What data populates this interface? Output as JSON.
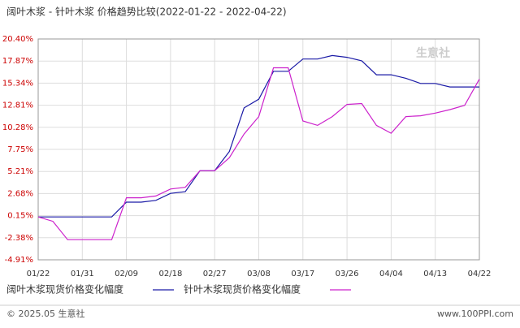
{
  "chart_data": {
    "type": "line",
    "title": "阔叶木浆 - 针叶木浆 价格趋势比较(2022-01-22 - 2022-04-22)",
    "categories": [
      "01/22",
      null,
      null,
      "01/31",
      null,
      null,
      "02/09",
      null,
      null,
      "02/18",
      null,
      null,
      "02/27",
      null,
      null,
      "03/08",
      null,
      null,
      "03/17",
      null,
      null,
      "03/26",
      null,
      null,
      "04/04",
      null,
      null,
      "04/13",
      null,
      null,
      "04/22"
    ],
    "series": [
      {
        "name": "阔叶木浆现货价格变化幅度",
        "color": "#1a1aa6",
        "values": [
          0.0,
          0.0,
          0.0,
          0.0,
          0.0,
          0.0,
          1.7,
          1.7,
          1.9,
          2.7,
          2.9,
          5.3,
          5.3,
          7.5,
          12.5,
          13.5,
          16.7,
          16.7,
          18.1,
          18.1,
          18.5,
          18.3,
          17.9,
          16.3,
          16.3,
          15.9,
          15.3,
          15.3,
          14.9,
          14.9,
          14.9
        ]
      },
      {
        "name": "针叶木浆现货价格变化幅度",
        "color": "#cc22cc",
        "values": [
          0.0,
          -0.5,
          -2.6,
          -2.6,
          -2.6,
          -2.6,
          2.2,
          2.2,
          2.4,
          3.2,
          3.4,
          5.3,
          5.3,
          6.8,
          9.5,
          11.5,
          17.1,
          17.1,
          11.0,
          10.5,
          11.5,
          12.9,
          13.0,
          10.5,
          9.6,
          11.5,
          11.6,
          11.9,
          12.3,
          12.8,
          15.8
        ]
      }
    ],
    "ylim": [
      -4.91,
      20.4
    ],
    "yticks": [
      {
        "value": -4.91,
        "label": "-4.91%"
      },
      {
        "value": -2.38,
        "label": "-2.38%"
      },
      {
        "value": 0.15,
        "label": "0.15%"
      },
      {
        "value": 2.68,
        "label": "2.68%"
      },
      {
        "value": 5.21,
        "label": "5.21%"
      },
      {
        "value": 7.75,
        "label": "7.75%"
      },
      {
        "value": 10.28,
        "label": "10.28%"
      },
      {
        "value": 12.81,
        "label": "12.81%"
      },
      {
        "value": 15.34,
        "label": "15.34%"
      },
      {
        "value": 17.87,
        "label": "17.87%"
      },
      {
        "value": 20.4,
        "label": "20.40%"
      }
    ],
    "grid": true,
    "watermark": "生意社",
    "footer_left": "© 2025.05 生意社",
    "footer_right": "www.100PPI.com"
  }
}
